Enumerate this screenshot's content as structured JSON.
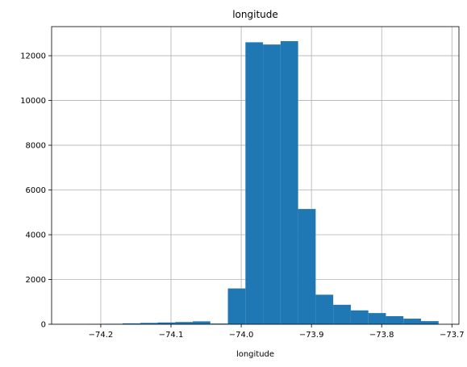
{
  "chart_data": {
    "type": "bar",
    "title": "longitude",
    "xlabel": "longitude",
    "ylabel": "",
    "grid": true,
    "bar_color": "#1f77b4",
    "xlim": [
      -74.27,
      -73.69
    ],
    "ylim": [
      0,
      13300
    ],
    "x_ticks": [
      -74.2,
      -74.1,
      -74.0,
      -73.9,
      -73.8,
      -73.7
    ],
    "x_tick_labels": [
      "−74.2",
      "−74.1",
      "−74.0",
      "−73.9",
      "−73.8",
      "−73.7"
    ],
    "y_ticks": [
      0,
      2000,
      4000,
      6000,
      8000,
      10000,
      12000
    ],
    "y_tick_labels": [
      "0",
      "2000",
      "4000",
      "6000",
      "8000",
      "10000",
      "12000"
    ],
    "bins": [
      {
        "start": -74.244,
        "end": -74.219,
        "value": 0
      },
      {
        "start": -74.219,
        "end": -74.194,
        "value": 10
      },
      {
        "start": -74.194,
        "end": -74.169,
        "value": 20
      },
      {
        "start": -74.169,
        "end": -74.144,
        "value": 40
      },
      {
        "start": -74.144,
        "end": -74.119,
        "value": 60
      },
      {
        "start": -74.119,
        "end": -74.094,
        "value": 80
      },
      {
        "start": -74.094,
        "end": -74.069,
        "value": 100
      },
      {
        "start": -74.069,
        "end": -74.044,
        "value": 130
      },
      {
        "start": -74.044,
        "end": -74.019,
        "value": 30
      },
      {
        "start": -74.019,
        "end": -73.994,
        "value": 1600
      },
      {
        "start": -73.994,
        "end": -73.969,
        "value": 12600
      },
      {
        "start": -73.969,
        "end": -73.944,
        "value": 12500
      },
      {
        "start": -73.944,
        "end": -73.919,
        "value": 12650
      },
      {
        "start": -73.919,
        "end": -73.894,
        "value": 5150
      },
      {
        "start": -73.894,
        "end": -73.869,
        "value": 1320
      },
      {
        "start": -73.869,
        "end": -73.844,
        "value": 870
      },
      {
        "start": -73.844,
        "end": -73.819,
        "value": 620
      },
      {
        "start": -73.819,
        "end": -73.794,
        "value": 500
      },
      {
        "start": -73.794,
        "end": -73.769,
        "value": 360
      },
      {
        "start": -73.769,
        "end": -73.744,
        "value": 250
      },
      {
        "start": -73.744,
        "end": -73.719,
        "value": 140
      }
    ]
  }
}
